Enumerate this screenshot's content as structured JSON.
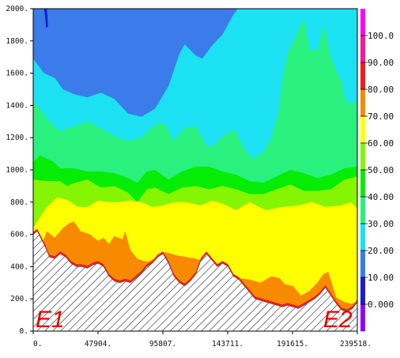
{
  "chart_data": {
    "type": "heatmap",
    "title": "",
    "xlabel": "",
    "ylabel": "",
    "xlim": [
      0,
      239518
    ],
    "ylim": [
      0,
      2000
    ],
    "x_ticks": [
      "0.",
      "47904.",
      "95807.",
      "143711.",
      "191615.",
      "239518."
    ],
    "y_ticks": [
      "0.",
      "200.",
      "400.",
      "600.",
      "800.",
      "1000.",
      "1200.",
      "1400.",
      "1600.",
      "1800.",
      "2000."
    ],
    "colorbar": {
      "levels": [
        0,
        10,
        20,
        30,
        40,
        50,
        60,
        70,
        80,
        90,
        100
      ],
      "labels": [
        "0.000",
        "10.00",
        "20.00",
        "30.00",
        "40.00",
        "50.00",
        "60.00",
        "70.00",
        "80.00",
        "90.00",
        "100.0"
      ],
      "colors": [
        "#9300ff",
        "#1d1dcc",
        "#3b7bea",
        "#1ce1f2",
        "#2af07d",
        "#05ec05",
        "#85f504",
        "#ffff00",
        "#f88a00",
        "#ee1c1c",
        "#ff1493",
        "#ff00ff"
      ]
    },
    "endpoint_labels": [
      "E1",
      "E2"
    ],
    "terrain_hatched": true,
    "contour_bands": [
      {
        "min": 10,
        "color": "#1d1dcc",
        "top": [
          [
            8000,
            2000
          ],
          [
            8800,
            1950
          ],
          [
            9500,
            1880
          ],
          [
            11000,
            1890
          ],
          [
            10500,
            1960
          ],
          [
            10000,
            2000
          ]
        ]
      },
      {
        "min": 20,
        "color": "#3b7bea",
        "top": "top"
      },
      {
        "min": 30,
        "color": "#1ce1f2",
        "top": [
          [
            0,
            1690
          ],
          [
            8000,
            1600
          ],
          [
            16000,
            1570
          ],
          [
            22000,
            1500
          ],
          [
            30000,
            1470
          ],
          [
            40000,
            1450
          ],
          [
            50000,
            1480
          ],
          [
            55000,
            1460
          ],
          [
            60000,
            1440
          ],
          [
            70000,
            1350
          ],
          [
            80000,
            1330
          ],
          [
            90000,
            1380
          ],
          [
            100000,
            1520
          ],
          [
            108000,
            1720
          ],
          [
            112000,
            1780
          ],
          [
            120000,
            1710
          ],
          [
            125000,
            1690
          ],
          [
            132000,
            1770
          ],
          [
            140000,
            1840
          ],
          [
            147000,
            1950
          ],
          [
            151000,
            2000
          ],
          [
            239518,
            2000
          ]
        ]
      },
      {
        "min": 40,
        "color": "#2af07d",
        "top": [
          [
            0,
            1420
          ],
          [
            5000,
            1380
          ],
          [
            12000,
            1300
          ],
          [
            20000,
            1240
          ],
          [
            30000,
            1270
          ],
          [
            40000,
            1300
          ],
          [
            50000,
            1260
          ],
          [
            60000,
            1210
          ],
          [
            70000,
            1180
          ],
          [
            80000,
            1200
          ],
          [
            90000,
            1280
          ],
          [
            97000,
            1290
          ],
          [
            104000,
            1180
          ],
          [
            112000,
            1260
          ],
          [
            120000,
            1270
          ],
          [
            128000,
            1150
          ],
          [
            134000,
            1150
          ],
          [
            140000,
            1210
          ],
          [
            149000,
            1250
          ],
          [
            156000,
            1130
          ],
          [
            162000,
            1070
          ],
          [
            170000,
            1110
          ],
          [
            176000,
            1200
          ],
          [
            181000,
            1350
          ],
          [
            184000,
            1560
          ],
          [
            188000,
            1720
          ],
          [
            194000,
            1830
          ],
          [
            200000,
            1940
          ],
          [
            204000,
            1750
          ],
          [
            210000,
            1740
          ],
          [
            215000,
            1900
          ],
          [
            218000,
            1760
          ],
          [
            223000,
            1630
          ],
          [
            228000,
            1550
          ],
          [
            230000,
            1450
          ],
          [
            233000,
            1410
          ],
          [
            236000,
            1420
          ],
          [
            239518,
            1420
          ]
        ]
      },
      {
        "min": 50,
        "color": "#05ec05",
        "top": [
          [
            0,
            1050
          ],
          [
            5000,
            1090
          ],
          [
            10000,
            1070
          ],
          [
            15000,
            1050
          ],
          [
            20000,
            1010
          ],
          [
            30000,
            1010
          ],
          [
            40000,
            990
          ],
          [
            50000,
            990
          ],
          [
            60000,
            980
          ],
          [
            70000,
            950
          ],
          [
            77000,
            920
          ],
          [
            84000,
            990
          ],
          [
            90000,
            1000
          ],
          [
            100000,
            940
          ],
          [
            110000,
            990
          ],
          [
            120000,
            1020
          ],
          [
            130000,
            1020
          ],
          [
            140000,
            990
          ],
          [
            150000,
            970
          ],
          [
            160000,
            930
          ],
          [
            170000,
            920
          ],
          [
            180000,
            960
          ],
          [
            190000,
            1000
          ],
          [
            200000,
            980
          ],
          [
            210000,
            950
          ],
          [
            220000,
            970
          ],
          [
            230000,
            1010
          ],
          [
            239518,
            1020
          ]
        ]
      },
      {
        "min": 60,
        "color": "#85f504",
        "top": [
          [
            0,
            940
          ],
          [
            10000,
            930
          ],
          [
            20000,
            930
          ],
          [
            25000,
            900
          ],
          [
            31000,
            920
          ],
          [
            40000,
            940
          ],
          [
            50000,
            890
          ],
          [
            60000,
            900
          ],
          [
            70000,
            860
          ],
          [
            77000,
            800
          ],
          [
            84000,
            880
          ],
          [
            90000,
            890
          ],
          [
            100000,
            850
          ],
          [
            110000,
            890
          ],
          [
            120000,
            900
          ],
          [
            130000,
            880
          ],
          [
            140000,
            900
          ],
          [
            150000,
            880
          ],
          [
            160000,
            850
          ],
          [
            170000,
            850
          ],
          [
            180000,
            880
          ],
          [
            190000,
            910
          ],
          [
            200000,
            870
          ],
          [
            210000,
            870
          ],
          [
            220000,
            880
          ],
          [
            230000,
            940
          ],
          [
            239518,
            960
          ]
        ]
      },
      {
        "min": 70,
        "color": "#ffff00",
        "top": [
          [
            0,
            640
          ],
          [
            10000,
            770
          ],
          [
            18000,
            830
          ],
          [
            26000,
            810
          ],
          [
            33000,
            770
          ],
          [
            40000,
            770
          ],
          [
            48000,
            810
          ],
          [
            56000,
            800
          ],
          [
            64000,
            800
          ],
          [
            72000,
            810
          ],
          [
            80000,
            800
          ],
          [
            88000,
            770
          ],
          [
            96000,
            780
          ],
          [
            104000,
            800
          ],
          [
            112000,
            800
          ],
          [
            124000,
            780
          ],
          [
            132000,
            810
          ],
          [
            140000,
            790
          ],
          [
            150000,
            750
          ],
          [
            160000,
            800
          ],
          [
            172000,
            750
          ],
          [
            184000,
            770
          ],
          [
            196000,
            780
          ],
          [
            206000,
            800
          ],
          [
            216000,
            770
          ],
          [
            228000,
            780
          ],
          [
            235000,
            800
          ],
          [
            239518,
            760
          ]
        ]
      },
      {
        "min": 80,
        "color": "#f88a00",
        "top": [
          [
            0,
            550
          ],
          [
            5000,
            500
          ],
          [
            10000,
            620
          ],
          [
            16000,
            580
          ],
          [
            22000,
            640
          ],
          [
            27000,
            670
          ],
          [
            30000,
            680
          ],
          [
            35000,
            620
          ],
          [
            42000,
            600
          ],
          [
            48000,
            560
          ],
          [
            52000,
            580
          ],
          [
            56000,
            540
          ],
          [
            60000,
            590
          ],
          [
            66000,
            570
          ],
          [
            68000,
            620
          ],
          [
            72000,
            500
          ],
          [
            77000,
            450
          ],
          [
            80000,
            440
          ],
          [
            85000,
            430
          ],
          [
            92000,
            460
          ],
          [
            98000,
            490
          ],
          [
            106000,
            470
          ],
          [
            120000,
            450
          ],
          [
            128000,
            430
          ],
          [
            134000,
            400
          ],
          [
            140000,
            370
          ],
          [
            150000,
            330
          ],
          [
            160000,
            320
          ],
          [
            168000,
            300
          ],
          [
            176000,
            340
          ],
          [
            182000,
            330
          ],
          [
            186000,
            290
          ],
          [
            192000,
            280
          ],
          [
            198000,
            220
          ],
          [
            204000,
            250
          ],
          [
            210000,
            300
          ],
          [
            214000,
            350
          ],
          [
            218000,
            370
          ],
          [
            224000,
            210
          ],
          [
            230000,
            180
          ],
          [
            235000,
            170
          ],
          [
            239518,
            180
          ]
        ]
      }
    ],
    "terrain": [
      [
        0,
        600
      ],
      [
        3000,
        620
      ],
      [
        6000,
        570
      ],
      [
        9000,
        520
      ],
      [
        12000,
        460
      ],
      [
        16000,
        450
      ],
      [
        20000,
        480
      ],
      [
        24000,
        460
      ],
      [
        28000,
        420
      ],
      [
        32000,
        400
      ],
      [
        36000,
        400
      ],
      [
        40000,
        390
      ],
      [
        44000,
        410
      ],
      [
        48000,
        420
      ],
      [
        52000,
        400
      ],
      [
        56000,
        340
      ],
      [
        60000,
        310
      ],
      [
        64000,
        300
      ],
      [
        68000,
        310
      ],
      [
        72000,
        300
      ],
      [
        76000,
        330
      ],
      [
        80000,
        360
      ],
      [
        84000,
        400
      ],
      [
        88000,
        420
      ],
      [
        92000,
        460
      ],
      [
        96000,
        480
      ],
      [
        100000,
        420
      ],
      [
        104000,
        340
      ],
      [
        108000,
        300
      ],
      [
        112000,
        280
      ],
      [
        116000,
        310
      ],
      [
        120000,
        350
      ],
      [
        124000,
        440
      ],
      [
        128000,
        480
      ],
      [
        132000,
        440
      ],
      [
        136000,
        400
      ],
      [
        140000,
        420
      ],
      [
        144000,
        400
      ],
      [
        148000,
        340
      ],
      [
        152000,
        320
      ],
      [
        156000,
        280
      ],
      [
        160000,
        240
      ],
      [
        164000,
        200
      ],
      [
        168000,
        190
      ],
      [
        172000,
        180
      ],
      [
        176000,
        170
      ],
      [
        180000,
        160
      ],
      [
        184000,
        150
      ],
      [
        188000,
        160
      ],
      [
        192000,
        150
      ],
      [
        196000,
        140
      ],
      [
        200000,
        160
      ],
      [
        204000,
        180
      ],
      [
        208000,
        200
      ],
      [
        212000,
        230
      ],
      [
        216000,
        270
      ],
      [
        220000,
        220
      ],
      [
        224000,
        170
      ],
      [
        228000,
        130
      ],
      [
        232000,
        120
      ],
      [
        236000,
        140
      ],
      [
        239518,
        180
      ]
    ]
  }
}
